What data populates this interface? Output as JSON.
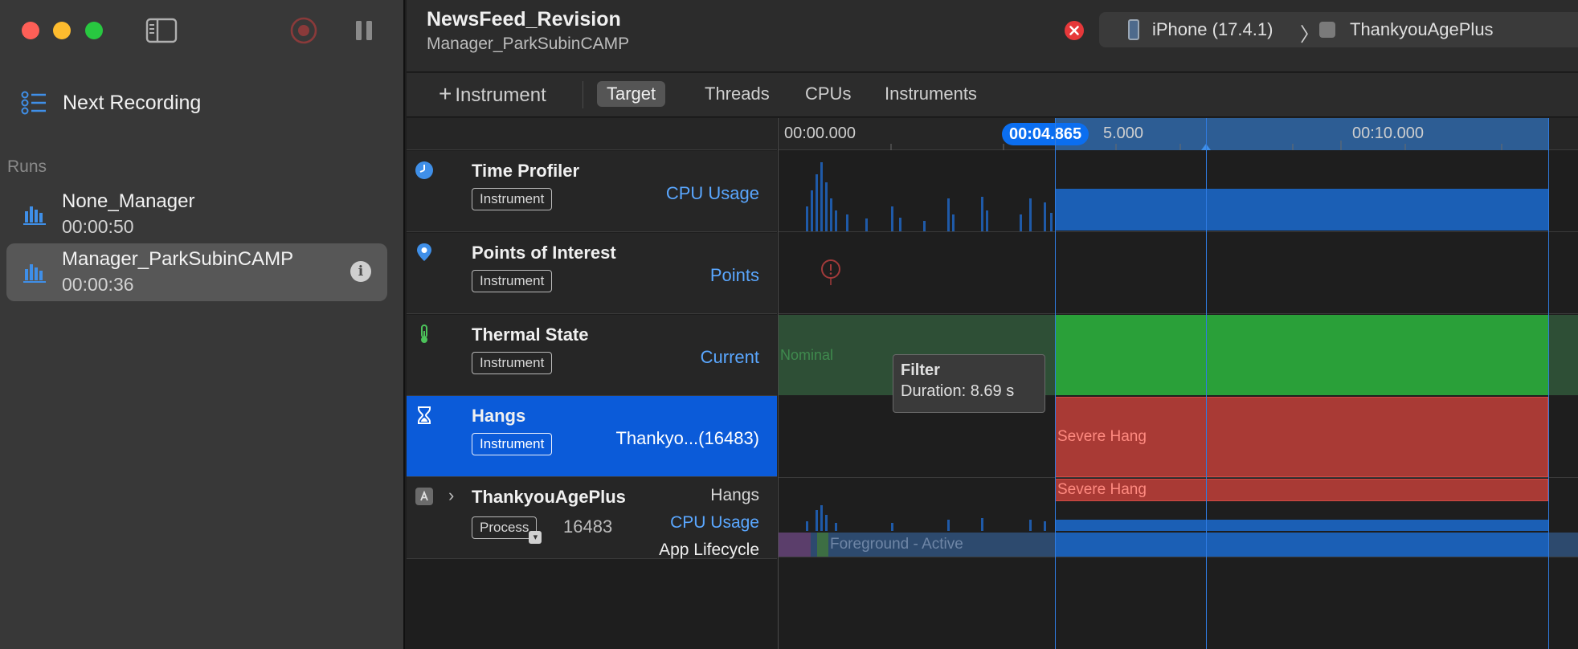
{
  "window": {
    "title": "NewsFeed_Revision",
    "subtitle": "Manager_ParkSubinCAMP"
  },
  "sidebar": {
    "next_recording": "Next Recording",
    "runs_label": "Runs",
    "runs": [
      {
        "name": "None_Manager",
        "time": "00:00:50"
      },
      {
        "name": "Manager_ParkSubinCAMP",
        "time": "00:00:36"
      }
    ]
  },
  "device": {
    "name": "iPhone (17.4.1)",
    "app": "ThankyouAgePlus"
  },
  "toolbar": {
    "add_instrument": "Instrument",
    "tabs": [
      "Target",
      "Threads",
      "CPUs",
      "Instruments"
    ]
  },
  "tracks": [
    {
      "name": "Time Profiler",
      "badge": "Instrument",
      "right": "CPU Usage"
    },
    {
      "name": "Points of Interest",
      "badge": "Instrument",
      "right": "Points"
    },
    {
      "name": "Thermal State",
      "badge": "Instrument",
      "right": "Current"
    },
    {
      "name": "Hangs",
      "badge": "Instrument",
      "right": "Thankyo...(16483)"
    }
  ],
  "process_track": {
    "name": "ThankyouAgePlus",
    "badge": "Process",
    "pid": "16483",
    "lines": [
      "Hangs",
      "CPU Usage",
      "App Lifecycle"
    ]
  },
  "timeline": {
    "ruler_labels": [
      "00:00.000",
      "5.000",
      "00:10.000"
    ],
    "cursor_time": "00:04.865",
    "thermal_label": "Nominal",
    "hang_label": "Severe Hang",
    "hang_small_label": "Severe Hang",
    "lifecycle_label": "Foreground - Active"
  },
  "tooltip": {
    "title": "Filter",
    "detail": "Duration: 8.69 s"
  },
  "colors": {
    "accent": "#0b5bd9",
    "hang": "#a93a35",
    "thermal": "#2aa039",
    "cpu": "#1b5fb5"
  }
}
